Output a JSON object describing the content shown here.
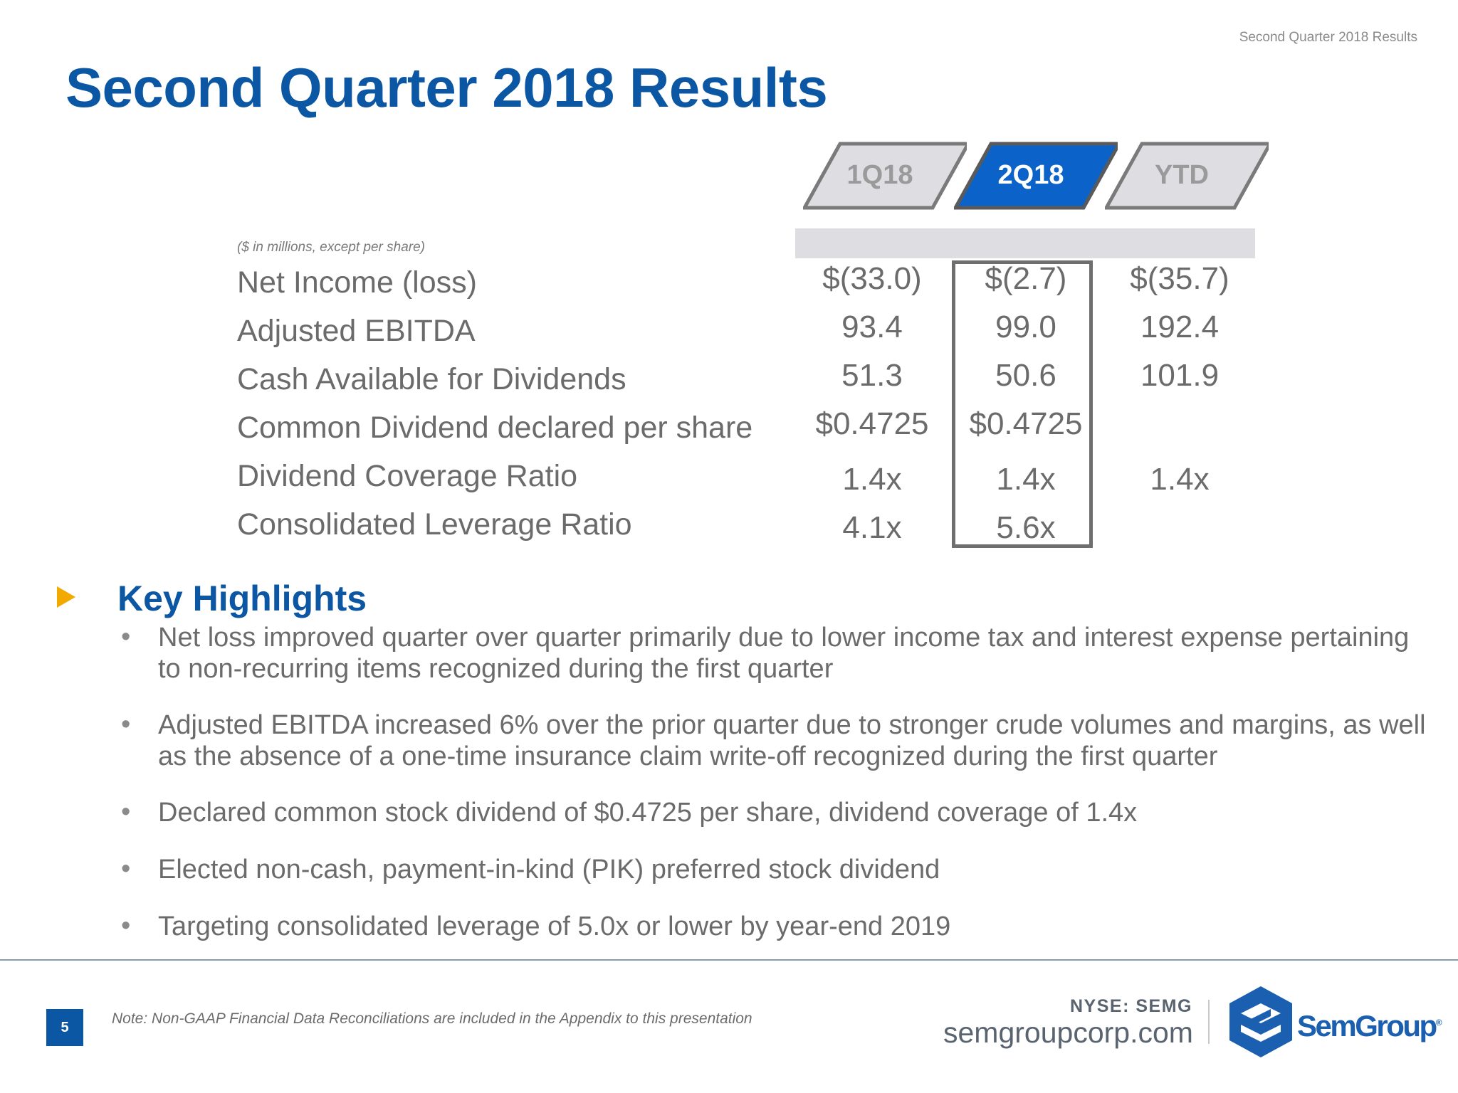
{
  "header": {
    "running_title": "Second Quarter 2018 Results",
    "title": "Second Quarter 2018 Results"
  },
  "table": {
    "columns": [
      "1Q18",
      "2Q18",
      "YTD"
    ],
    "active_column": "2Q18",
    "units_note": "($ in millions, except per share)",
    "rows": [
      {
        "label": "Net Income (loss)",
        "values": [
          "$(33.0)",
          "$(2.7)",
          "$(35.7)"
        ]
      },
      {
        "label": "Adjusted EBITDA",
        "values": [
          "93.4",
          "99.0",
          "192.4"
        ]
      },
      {
        "label": "Cash Available for Dividends",
        "values": [
          "51.3",
          "50.6",
          "101.9"
        ]
      },
      {
        "label": "Common Dividend declared per share",
        "values": [
          "$0.4725",
          "$0.4725",
          ""
        ]
      },
      {
        "label": "Dividend Coverage Ratio",
        "values": [
          "1.4x",
          "1.4x",
          "1.4x"
        ]
      },
      {
        "label": "Consolidated Leverage Ratio",
        "values": [
          "4.1x",
          "5.6x",
          ""
        ]
      }
    ]
  },
  "highlights": {
    "title": "Key Highlights",
    "items": [
      "Net loss improved quarter over quarter primarily due to lower income tax and interest expense pertaining to non-recurring items recognized during the first quarter",
      "Adjusted EBITDA increased 6% over the prior quarter due to stronger crude volumes and margins, as well as the absence of a one-time insurance claim write-off recognized during the first quarter",
      "Declared common stock dividend of $0.4725 per share, dividend coverage of 1.4x",
      "Elected non-cash, payment-in-kind (PIK) preferred stock dividend",
      "Targeting consolidated leverage of 5.0x or lower by year-end 2019"
    ]
  },
  "footer": {
    "page_number": "5",
    "note": "Note:  Non-GAAP Financial Data Reconciliations are included in the Appendix to this presentation",
    "ticker": "NYSE: SEMG",
    "website": "semgroupcorp.com",
    "logo_text": "SemGroup",
    "logo_mark": "®"
  },
  "colors": {
    "brand_blue": "#0b57a4",
    "accent_orange": "#f2a900",
    "tab_grey": "#dedde2",
    "text_grey": "#6b6b6b"
  }
}
